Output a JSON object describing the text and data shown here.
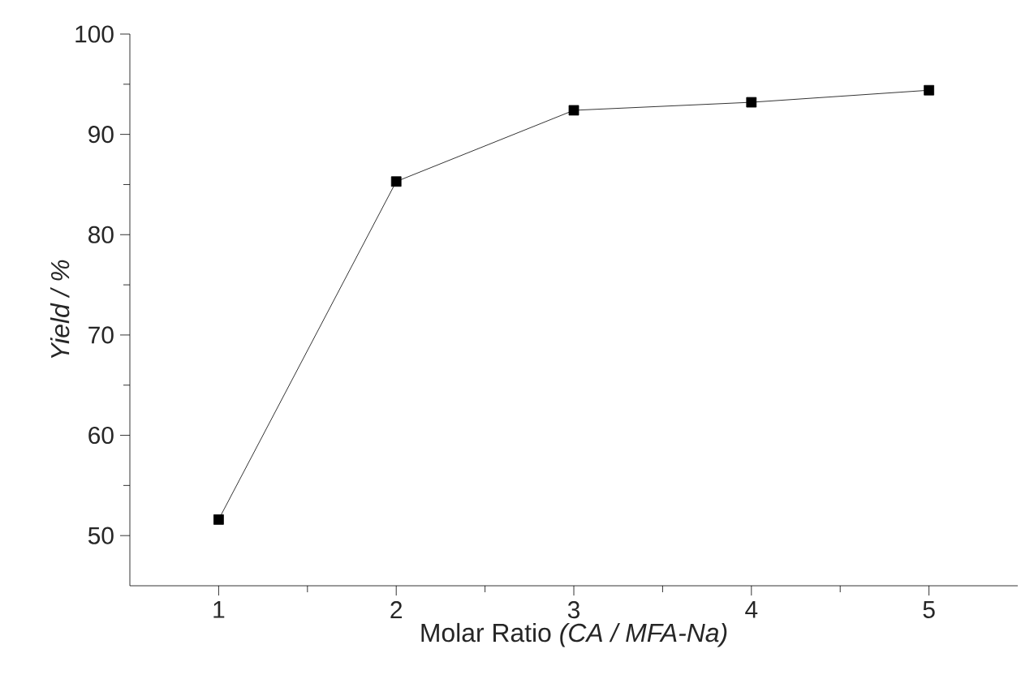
{
  "chart_data": {
    "type": "line",
    "xlabel": "Molar Ratio *(CA / MFA-Na)*",
    "ylabel": "Yield / %",
    "x": [
      1,
      2,
      3,
      4,
      5
    ],
    "series": [
      {
        "color": "#000000",
        "values": [
          51.6,
          85.3,
          92.4,
          93.2,
          94.4
        ]
      }
    ],
    "xlim": [
      0.5,
      5.5
    ],
    "xticks": [
      1,
      2,
      3,
      4,
      5
    ],
    "ylim": [
      45,
      100
    ],
    "yticks": [
      50,
      60,
      70,
      80,
      90,
      100
    ],
    "marker": "square",
    "line_style": "solid",
    "grid": false,
    "legend": false
  }
}
